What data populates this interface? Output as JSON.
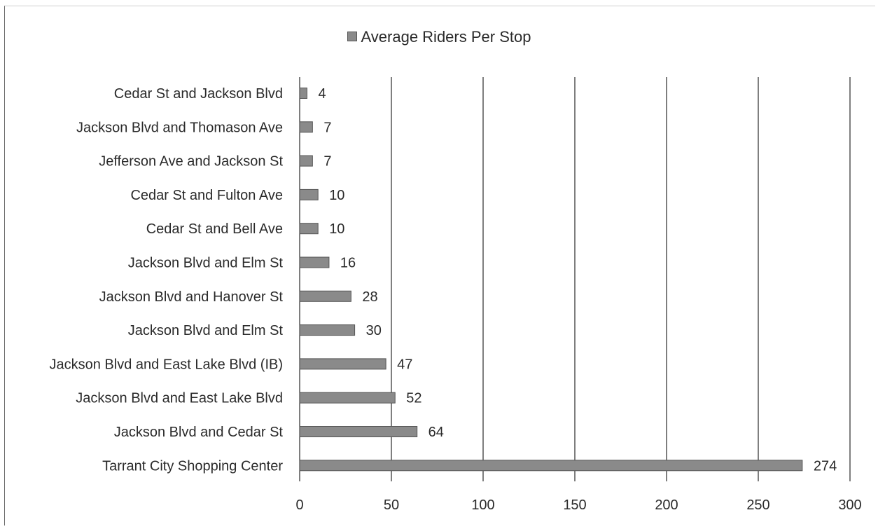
{
  "chart_data": {
    "type": "bar",
    "orientation": "horizontal",
    "categories": [
      "Cedar St and Jackson Blvd",
      "Jackson Blvd and Thomason Ave",
      "Jefferson Ave and Jackson St",
      "Cedar St and Fulton Ave",
      "Cedar St and Bell Ave",
      "Jackson Blvd and Elm St",
      "Jackson Blvd and Hanover St",
      "Jackson Blvd and Elm St",
      "Jackson Blvd and East Lake Blvd (IB)",
      "Jackson Blvd and East Lake Blvd",
      "Jackson Blvd and Cedar St",
      "Tarrant City Shopping Center"
    ],
    "series": [
      {
        "name": "Average Riders Per Stop",
        "values": [
          4,
          7,
          7,
          10,
          10,
          16,
          28,
          30,
          47,
          52,
          64,
          274
        ]
      }
    ],
    "xlim": [
      0,
      300
    ],
    "xticks": [
      0,
      50,
      100,
      150,
      200,
      250,
      300
    ],
    "grid": true,
    "legend_position": "top",
    "bar_color": "#8a8a8a",
    "bar_edge_color": "#555555",
    "grid_color": "#3a3a3a"
  }
}
